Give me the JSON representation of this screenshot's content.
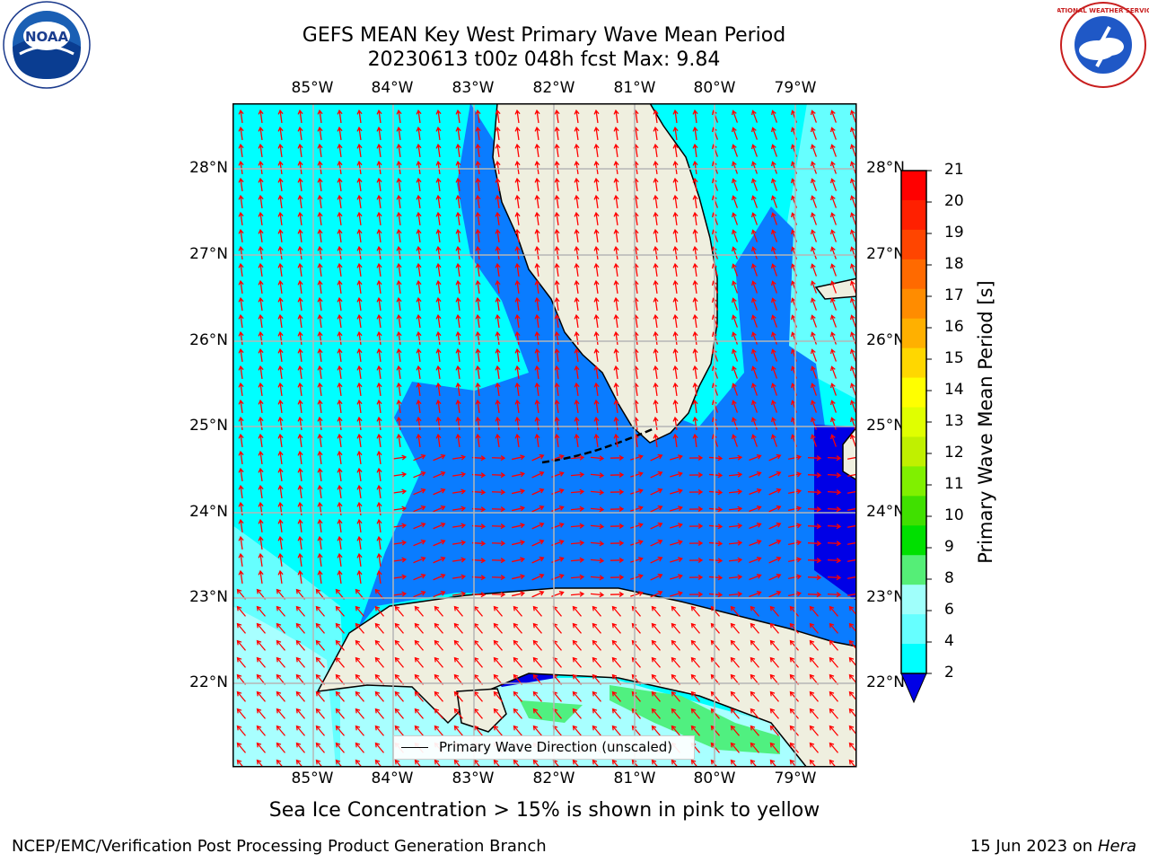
{
  "title_line1": "GEFS MEAN Key West Primary Wave Mean Period",
  "title_line2": "20230613 t00z 048h fcst   Max: 9.84",
  "map": {
    "lon_labels": [
      "85°W",
      "84°W",
      "83°W",
      "82°W",
      "81°W",
      "80°W",
      "79°W"
    ],
    "lat_labels": [
      "28°N",
      "27°N",
      "26°N",
      "25°N",
      "24°N",
      "23°N",
      "22°N"
    ],
    "legend_label": "Primary Wave Direction (unscaled)",
    "colors": {
      "ocean_shallow": "#00ffff",
      "land": "#efefdf",
      "period_2_4": "#0a7cff",
      "period_below_2": "#0000e6",
      "period_6_8": "#66ffff",
      "period_8_9": "#a8ffff",
      "period_9_10": "#50f080",
      "arrow": "#ff0000"
    }
  },
  "colorbar": {
    "label": "Primary Wave Mean Period [s]",
    "ticks": [
      "21",
      "20",
      "19",
      "18",
      "17",
      "16",
      "15",
      "14",
      "13",
      "12",
      "11",
      "10",
      "9",
      "8",
      "6",
      "4",
      "2"
    ],
    "colors": [
      "#ff0000",
      "#ff2000",
      "#ff4500",
      "#ff6a00",
      "#ff8c00",
      "#ffb000",
      "#ffd700",
      "#ffff00",
      "#e0ff00",
      "#c0f000",
      "#80f000",
      "#40e000",
      "#00e000",
      "#55ee77",
      "#a0fffb",
      "#66ffff",
      "#00ffff",
      "#0a7cff"
    ]
  },
  "footer_note": "Sea Ice Concentration > 15% is shown in pink to yellow",
  "credit_left": "NCEP/EMC/Verification Post Processing Product Generation Branch",
  "credit_date": "15 Jun 2023",
  "credit_on": "on",
  "credit_machine": "Hera",
  "logos": {
    "left_text": "NOAA",
    "right_text": "NATIONAL WEATHER SERVICE"
  }
}
